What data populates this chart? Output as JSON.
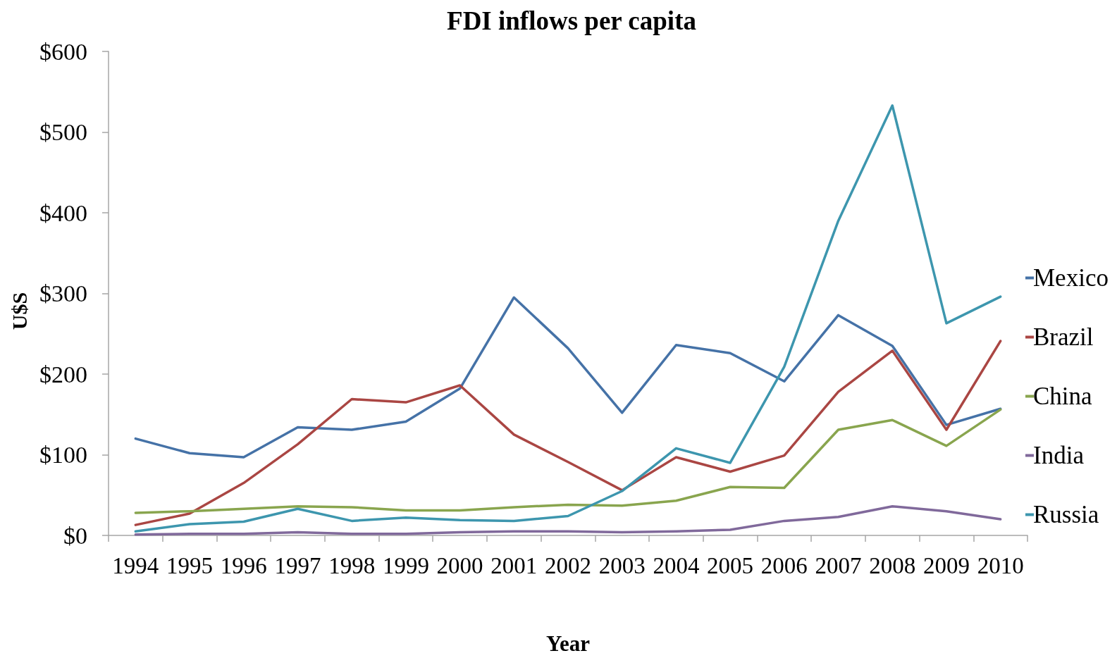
{
  "chart_data": {
    "type": "line",
    "title": "FDI inflows per capita",
    "xlabel": "Year",
    "ylabel": "U$S",
    "categories": [
      "1994",
      "1995",
      "1996",
      "1997",
      "1998",
      "1999",
      "2000",
      "2001",
      "2002",
      "2003",
      "2004",
      "2005",
      "2006",
      "2007",
      "2008",
      "2009",
      "2010"
    ],
    "series": [
      {
        "name": "Mexico",
        "color": "#4572a7",
        "values": [
          120,
          102,
          97,
          134,
          131,
          141,
          182,
          295,
          232,
          152,
          236,
          226,
          191,
          273,
          235,
          137,
          157
        ]
      },
      {
        "name": "Brazil",
        "color": "#aa4643",
        "values": [
          13,
          27,
          65,
          113,
          169,
          165,
          186,
          125,
          91,
          56,
          97,
          79,
          99,
          178,
          229,
          131,
          241
        ]
      },
      {
        "name": "China",
        "color": "#89a54e",
        "values": [
          28,
          30,
          33,
          36,
          35,
          31,
          31,
          35,
          38,
          37,
          43,
          60,
          59,
          131,
          143,
          111,
          156
        ]
      },
      {
        "name": "India",
        "color": "#80699b",
        "values": [
          1,
          2,
          2,
          4,
          2,
          2,
          4,
          5,
          5,
          4,
          5,
          7,
          18,
          23,
          36,
          30,
          20
        ]
      },
      {
        "name": "Russia",
        "color": "#3d96ae",
        "values": [
          5,
          14,
          17,
          33,
          18,
          22,
          19,
          18,
          24,
          55,
          108,
          90,
          209,
          390,
          533,
          263,
          296
        ]
      }
    ],
    "ylim": [
      0,
      600
    ],
    "yticks": [
      {
        "value": 0,
        "label": "$0"
      },
      {
        "value": 100,
        "label": "$100"
      },
      {
        "value": 200,
        "label": "$200"
      },
      {
        "value": 300,
        "label": "$300"
      },
      {
        "value": 400,
        "label": "$400"
      },
      {
        "value": 500,
        "label": "$500"
      },
      {
        "value": 600,
        "label": "$600"
      }
    ],
    "legend": "right",
    "marker": "none",
    "line_style": "solid"
  }
}
